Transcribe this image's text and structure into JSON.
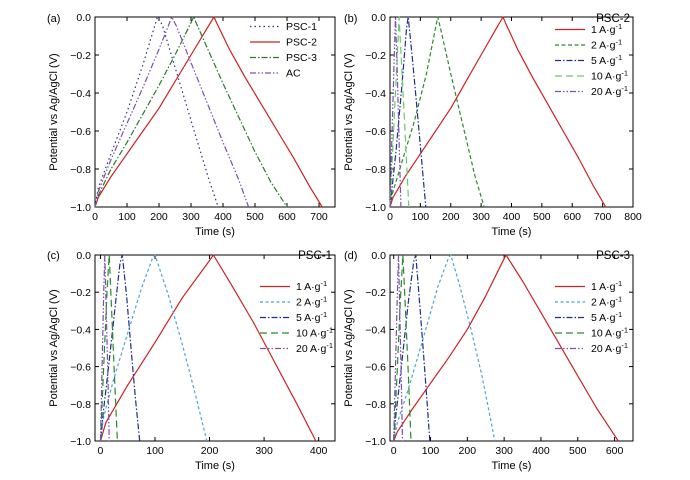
{
  "chart_data": [
    {
      "panel_label": "(a)",
      "panel_title": "",
      "type": "line",
      "xlabel": "Time (s)",
      "ylabel": "Potential vs Ag/AgCl (V)",
      "xlim": [
        0,
        750
      ],
      "ylim": [
        -1.0,
        0.0
      ],
      "xticks": [
        0,
        100,
        200,
        300,
        400,
        500,
        600,
        700
      ],
      "yticks": [
        0.0,
        -0.2,
        -0.4,
        -0.6,
        -0.8,
        -1.0
      ],
      "legend_position": "top-right",
      "series": [
        {
          "name": "PSC-1",
          "color": "#2e2e8a",
          "dash": "1.5,3",
          "x": [
            0,
            10,
            50,
            100,
            150,
            195,
            210,
            260,
            310,
            355,
            385
          ],
          "y": [
            -1.0,
            -0.9,
            -0.72,
            -0.5,
            -0.25,
            0.0,
            -0.04,
            -0.32,
            -0.6,
            -0.85,
            -1.0
          ]
        },
        {
          "name": "PSC-2",
          "color": "#cc2222",
          "dash": "",
          "x": [
            0,
            10,
            50,
            100,
            150,
            200,
            250,
            300,
            350,
            372,
            380,
            420,
            470,
            520,
            570,
            620,
            670,
            710
          ],
          "y": [
            -1.0,
            -0.95,
            -0.84,
            -0.72,
            -0.6,
            -0.48,
            -0.34,
            -0.2,
            -0.06,
            0.0,
            -0.03,
            -0.17,
            -0.32,
            -0.46,
            -0.6,
            -0.74,
            -0.89,
            -1.0
          ]
        },
        {
          "name": "PSC-3",
          "color": "#2a7a2a",
          "dash": "6,2,1.5,2",
          "x": [
            0,
            10,
            50,
            100,
            150,
            200,
            250,
            300,
            308,
            350,
            400,
            450,
            500,
            550,
            600
          ],
          "y": [
            -1.0,
            -0.94,
            -0.8,
            -0.66,
            -0.51,
            -0.36,
            -0.2,
            -0.03,
            0.0,
            -0.16,
            -0.35,
            -0.53,
            -0.71,
            -0.87,
            -1.0
          ]
        },
        {
          "name": "AC",
          "color": "#7a4fb3",
          "dash": "6,2,1.5,2,1.5,2",
          "x": [
            0,
            10,
            50,
            100,
            150,
            200,
            240,
            255,
            300,
            350,
            400,
            450,
            480
          ],
          "y": [
            -1.0,
            -0.92,
            -0.75,
            -0.56,
            -0.37,
            -0.17,
            0.0,
            -0.05,
            -0.24,
            -0.45,
            -0.66,
            -0.86,
            -1.0
          ]
        }
      ]
    },
    {
      "panel_label": "(b)",
      "panel_title": "PSC-2",
      "type": "line",
      "xlabel": "Time (s)",
      "ylabel": "Potential vs Ag/AgCl (V)",
      "xlim": [
        0,
        800
      ],
      "ylim": [
        -1.0,
        0.0
      ],
      "xticks": [
        0,
        100,
        200,
        300,
        400,
        500,
        600,
        700,
        800
      ],
      "yticks": [
        0.0,
        -0.2,
        -0.4,
        -0.6,
        -0.8,
        -1.0
      ],
      "legend_position": "top-right",
      "series": [
        {
          "name": "1 A·g",
          "sup": "-1",
          "color": "#cc2222",
          "dash": "",
          "x": [
            0,
            10,
            50,
            100,
            150,
            200,
            250,
            300,
            350,
            372,
            380,
            420,
            470,
            520,
            570,
            620,
            670,
            710
          ],
          "y": [
            -1.0,
            -0.95,
            -0.84,
            -0.72,
            -0.6,
            -0.48,
            -0.34,
            -0.2,
            -0.06,
            0.0,
            -0.03,
            -0.17,
            -0.32,
            -0.46,
            -0.6,
            -0.74,
            -0.89,
            -1.0
          ]
        },
        {
          "name": "2 A·g",
          "sup": "-1",
          "color": "#2a8a2a",
          "dash": "4,2.5",
          "x": [
            0,
            8,
            40,
            80,
            120,
            157,
            165,
            200,
            240,
            280,
            310
          ],
          "y": [
            -1.0,
            -0.93,
            -0.76,
            -0.55,
            -0.3,
            0.0,
            -0.05,
            -0.3,
            -0.57,
            -0.84,
            -1.0
          ]
        },
        {
          "name": "5 A·g",
          "sup": "-1",
          "color": "#1e2e8a",
          "dash": "6,2,1.5,2",
          "x": [
            0,
            5,
            20,
            40,
            55,
            60,
            75,
            90,
            105,
            118
          ],
          "y": [
            -1.0,
            -0.93,
            -0.7,
            -0.35,
            -0.05,
            0.0,
            -0.24,
            -0.5,
            -0.77,
            -1.0
          ]
        },
        {
          "name": "10 A·g",
          "sup": "-1",
          "color": "#66cc66",
          "dash": "7,4",
          "x": [
            0,
            12,
            24,
            30,
            40,
            50,
            62
          ],
          "y": [
            -1.0,
            -0.6,
            -0.2,
            0.0,
            -0.3,
            -0.62,
            -1.0
          ]
        },
        {
          "name": "20 A·g",
          "sup": "-1",
          "color": "#7a4fb3",
          "dash": "6,2,1.5,2,1.5,2",
          "x": [
            0,
            7,
            14,
            18,
            24,
            30,
            36
          ],
          "y": [
            -1.0,
            -0.6,
            -0.2,
            0.0,
            -0.3,
            -0.65,
            -1.0
          ]
        }
      ]
    },
    {
      "panel_label": "(c)",
      "panel_title": "PSC-1",
      "type": "line",
      "xlabel": "Time (s)",
      "ylabel": "Potential vs Ag/AgCl (V)",
      "xlim": [
        -10,
        430
      ],
      "ylim": [
        -1.0,
        0.0
      ],
      "xticks": [
        0,
        100,
        200,
        300,
        400
      ],
      "yticks": [
        0.0,
        -0.2,
        -0.4,
        -0.6,
        -0.8,
        -1.0
      ],
      "legend_position": "center-right",
      "series": [
        {
          "name": "1 A·g",
          "sup": "-1",
          "color": "#cc2222",
          "dash": "",
          "x": [
            0,
            10,
            50,
            100,
            150,
            200,
            207,
            240,
            280,
            320,
            360,
            395
          ],
          "y": [
            -1.0,
            -0.9,
            -0.7,
            -0.47,
            -0.23,
            -0.03,
            0.0,
            -0.16,
            -0.36,
            -0.58,
            -0.8,
            -1.0
          ]
        },
        {
          "name": "2 A·g",
          "sup": "-1",
          "color": "#4aa3d9",
          "dash": "3,2.5",
          "x": [
            0,
            5,
            25,
            50,
            75,
            95,
            100,
            125,
            150,
            175,
            195
          ],
          "y": [
            -1.0,
            -0.88,
            -0.66,
            -0.42,
            -0.18,
            -0.02,
            0.0,
            -0.22,
            -0.48,
            -0.76,
            -1.0
          ]
        },
        {
          "name": "5 A·g",
          "sup": "-1",
          "color": "#1e2e8a",
          "dash": "6,2,1.5,2",
          "x": [
            0,
            5,
            15,
            28,
            36,
            40,
            48,
            56,
            64,
            72
          ],
          "y": [
            -1.0,
            -0.85,
            -0.6,
            -0.25,
            -0.04,
            0.0,
            -0.22,
            -0.5,
            -0.77,
            -1.0
          ]
        },
        {
          "name": "10 A·g",
          "sup": "-1",
          "color": "#2a8a2a",
          "dash": "7,4",
          "x": [
            0,
            6,
            12,
            16,
            21,
            26,
            31
          ],
          "y": [
            -1.0,
            -0.6,
            -0.2,
            0.0,
            -0.33,
            -0.67,
            -1.0
          ]
        },
        {
          "name": "20 A·g",
          "sup": "-1",
          "color": "#7a4fb3",
          "dash": "6,2,1.5,2,1.5,2",
          "x": [
            0,
            3,
            6,
            8,
            11,
            14,
            16
          ],
          "y": [
            -1.0,
            -0.6,
            -0.2,
            0.0,
            -0.35,
            -0.7,
            -1.0
          ]
        }
      ]
    },
    {
      "panel_label": "(d)",
      "panel_title": "PSC-3",
      "type": "line",
      "xlabel": "Time (s)",
      "ylabel": "Potential vs Ag/AgCl (V)",
      "xlim": [
        -10,
        650
      ],
      "ylim": [
        -1.0,
        0.0
      ],
      "xticks": [
        0,
        100,
        200,
        300,
        400,
        500,
        600
      ],
      "yticks": [
        0.0,
        -0.2,
        -0.4,
        -0.6,
        -0.8,
        -1.0
      ],
      "legend_position": "center-right",
      "series": [
        {
          "name": "1 A·g",
          "sup": "-1",
          "color": "#cc2222",
          "dash": "",
          "x": [
            0,
            10,
            50,
            100,
            150,
            200,
            250,
            300,
            305,
            350,
            400,
            450,
            500,
            550,
            600,
            610
          ],
          "y": [
            -1.0,
            -0.95,
            -0.83,
            -0.69,
            -0.55,
            -0.4,
            -0.22,
            -0.02,
            0.0,
            -0.14,
            -0.31,
            -0.48,
            -0.65,
            -0.82,
            -0.97,
            -1.0
          ]
        },
        {
          "name": "2 A·g",
          "sup": "-1",
          "color": "#4aa3d9",
          "dash": "3,2.5",
          "x": [
            0,
            10,
            40,
            80,
            120,
            150,
            155,
            180,
            210,
            240,
            275
          ],
          "y": [
            -1.0,
            -0.9,
            -0.72,
            -0.45,
            -0.17,
            -0.01,
            0.0,
            -0.17,
            -0.4,
            -0.65,
            -1.0
          ]
        },
        {
          "name": "5 A·g",
          "sup": "-1",
          "color": "#1e2e8a",
          "dash": "6,2,1.5,2",
          "x": [
            0,
            5,
            20,
            40,
            55,
            60,
            70,
            80,
            90,
            98
          ],
          "y": [
            -1.0,
            -0.88,
            -0.62,
            -0.25,
            -0.03,
            0.0,
            -0.25,
            -0.5,
            -0.77,
            -1.0
          ]
        },
        {
          "name": "10 A·g",
          "sup": "-1",
          "color": "#2a8a2a",
          "dash": "7,4",
          "x": [
            0,
            9,
            18,
            25,
            32,
            40,
            47
          ],
          "y": [
            -1.0,
            -0.65,
            -0.25,
            0.0,
            -0.3,
            -0.65,
            -1.0
          ]
        },
        {
          "name": "20 A·g",
          "sup": "-1",
          "color": "#7a4fb3",
          "dash": "6,2,1.5,2,1.5,2",
          "x": [
            0,
            5,
            10,
            13,
            17,
            21,
            24
          ],
          "y": [
            -1.0,
            -0.6,
            -0.2,
            0.0,
            -0.33,
            -0.7,
            -1.0
          ]
        }
      ]
    }
  ]
}
